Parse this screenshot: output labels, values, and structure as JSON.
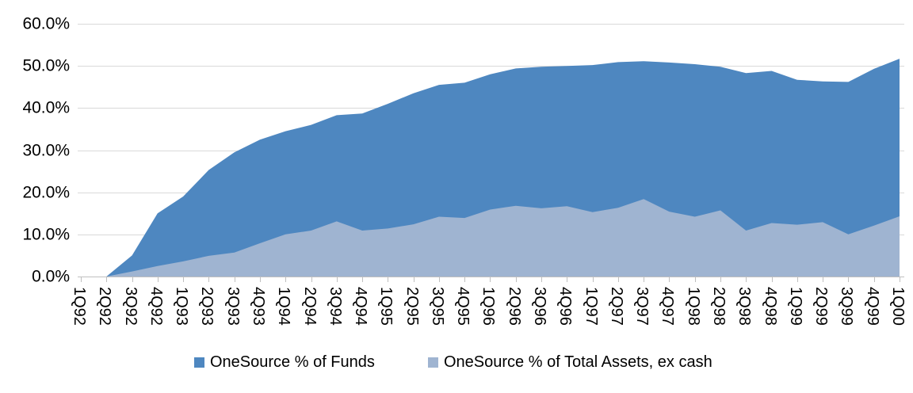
{
  "chart_data": {
    "type": "area",
    "title": "",
    "categories": [
      "1Q92",
      "2Q92",
      "3Q92",
      "4Q92",
      "1Q93",
      "2Q93",
      "3Q93",
      "4Q93",
      "1Q94",
      "2Q94",
      "3Q94",
      "4Q94",
      "1Q95",
      "2Q95",
      "3Q95",
      "4Q95",
      "1Q96",
      "2Q96",
      "3Q96",
      "4Q96",
      "1Q97",
      "2Q97",
      "3Q97",
      "4Q97",
      "1Q98",
      "2Q98",
      "3Q98",
      "4Q98",
      "1Q99",
      "2Q99",
      "3Q99",
      "4Q99",
      "1Q00"
    ],
    "series": [
      {
        "name": "OneSource % of Funds",
        "color": "#4E87C0",
        "values": [
          0.0,
          0.0,
          5.0,
          15.0,
          19.0,
          25.3,
          29.5,
          32.5,
          34.5,
          36.0,
          38.3,
          38.7,
          41.0,
          43.5,
          45.5,
          46.0,
          48.0,
          49.4,
          49.8,
          50.0,
          50.2,
          50.9,
          51.1,
          50.8,
          50.4,
          49.8,
          48.3,
          48.8,
          46.7,
          46.3,
          46.2,
          49.3,
          51.7
        ]
      },
      {
        "name": "OneSource % of Total Assets, ex cash",
        "color": "#9FB4D1",
        "values": [
          0.0,
          0.0,
          1.2,
          2.5,
          3.6,
          4.9,
          5.7,
          7.9,
          10.0,
          10.9,
          13.1,
          10.9,
          11.4,
          12.4,
          14.2,
          13.9,
          15.9,
          16.8,
          16.2,
          16.7,
          15.3,
          16.3,
          18.4,
          15.4,
          14.2,
          15.7,
          10.9,
          12.7,
          12.3,
          12.9,
          10.0,
          12.1,
          14.3
        ]
      }
    ],
    "mode": "overlap",
    "y_axis": {
      "min": 0,
      "max": 60,
      "tick_step": 10,
      "tick_labels": [
        "0.0%",
        "10.0%",
        "20.0%",
        "30.0%",
        "40.0%",
        "50.0%",
        "60.0%"
      ]
    },
    "grid": true,
    "legend_position": "bottom",
    "colors": {
      "gridline": "#D9D9D9",
      "axis": "#BFBFBF",
      "text": "#000000",
      "background": "#FFFFFF"
    }
  }
}
